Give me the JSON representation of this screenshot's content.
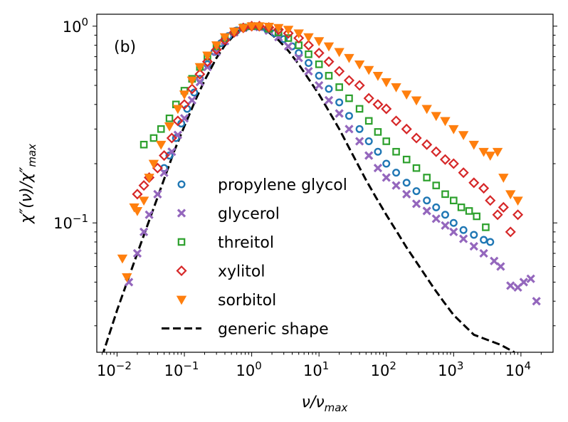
{
  "chart_data": {
    "type": "scatter",
    "panel_label": "(b)",
    "x_scale": "log",
    "y_scale": "log",
    "xlim": [
      0.005,
      30000
    ],
    "ylim": [
      0.022,
      1.15
    ],
    "xlabel": {
      "main": "ν/ν",
      "sub": "max"
    },
    "ylabel": {
      "main": "χ″(ν)/χ″",
      "sub": "max"
    },
    "x_ticks": [
      {
        "value": 0.01,
        "base": "10",
        "exp": "−2"
      },
      {
        "value": 0.1,
        "base": "10",
        "exp": "−1"
      },
      {
        "value": 1,
        "base": "10",
        "exp": "0"
      },
      {
        "value": 10,
        "base": "10",
        "exp": "1"
      },
      {
        "value": 100,
        "base": "10",
        "exp": "2"
      },
      {
        "value": 1000,
        "base": "10",
        "exp": "3"
      },
      {
        "value": 10000,
        "base": "10",
        "exp": "4"
      }
    ],
    "y_ticks": [
      {
        "value": 0.1,
        "base": "10",
        "exp": "−1"
      },
      {
        "value": 1,
        "base": "10",
        "exp": "0"
      }
    ],
    "legend_position": "center",
    "series": [
      {
        "name": "propylene glycol",
        "marker": "circle",
        "color": "#1f77b4",
        "points": [
          [
            0.05,
            0.19
          ],
          [
            0.06,
            0.22
          ],
          [
            0.075,
            0.27
          ],
          [
            0.09,
            0.32
          ],
          [
            0.11,
            0.38
          ],
          [
            0.14,
            0.46
          ],
          [
            0.17,
            0.54
          ],
          [
            0.22,
            0.64
          ],
          [
            0.28,
            0.74
          ],
          [
            0.35,
            0.82
          ],
          [
            0.45,
            0.89
          ],
          [
            0.6,
            0.95
          ],
          [
            0.8,
            0.985
          ],
          [
            1.0,
            1.0
          ],
          [
            1.3,
            0.99
          ],
          [
            1.7,
            0.96
          ],
          [
            2.2,
            0.92
          ],
          [
            3,
            0.86
          ],
          [
            4,
            0.79
          ],
          [
            5,
            0.73
          ],
          [
            7,
            0.65
          ],
          [
            10,
            0.56
          ],
          [
            14,
            0.48
          ],
          [
            20,
            0.41
          ],
          [
            28,
            0.35
          ],
          [
            40,
            0.3
          ],
          [
            55,
            0.26
          ],
          [
            75,
            0.23
          ],
          [
            100,
            0.2
          ],
          [
            140,
            0.18
          ],
          [
            200,
            0.16
          ],
          [
            280,
            0.145
          ],
          [
            400,
            0.13
          ],
          [
            550,
            0.12
          ],
          [
            750,
            0.11
          ],
          [
            1000,
            0.1
          ],
          [
            1400,
            0.092
          ],
          [
            2000,
            0.087
          ],
          [
            2800,
            0.082
          ],
          [
            3500,
            0.08
          ]
        ]
      },
      {
        "name": "glycerol",
        "marker": "x",
        "color": "#9467bd",
        "points": [
          [
            0.015,
            0.05
          ],
          [
            0.02,
            0.07
          ],
          [
            0.025,
            0.09
          ],
          [
            0.03,
            0.11
          ],
          [
            0.04,
            0.14
          ],
          [
            0.05,
            0.18
          ],
          [
            0.065,
            0.23
          ],
          [
            0.08,
            0.28
          ],
          [
            0.1,
            0.34
          ],
          [
            0.13,
            0.42
          ],
          [
            0.17,
            0.52
          ],
          [
            0.22,
            0.62
          ],
          [
            0.3,
            0.74
          ],
          [
            0.4,
            0.84
          ],
          [
            0.55,
            0.93
          ],
          [
            0.75,
            0.98
          ],
          [
            1.0,
            1.0
          ],
          [
            1.3,
            0.99
          ],
          [
            1.8,
            0.95
          ],
          [
            2.5,
            0.88
          ],
          [
            3.5,
            0.79
          ],
          [
            5,
            0.69
          ],
          [
            7,
            0.59
          ],
          [
            10,
            0.5
          ],
          [
            14,
            0.42
          ],
          [
            20,
            0.36
          ],
          [
            28,
            0.3
          ],
          [
            40,
            0.26
          ],
          [
            55,
            0.22
          ],
          [
            75,
            0.19
          ],
          [
            100,
            0.17
          ],
          [
            140,
            0.155
          ],
          [
            200,
            0.14
          ],
          [
            280,
            0.125
          ],
          [
            400,
            0.115
          ],
          [
            550,
            0.105
          ],
          [
            750,
            0.097
          ],
          [
            1000,
            0.09
          ],
          [
            1400,
            0.083
          ],
          [
            2000,
            0.076
          ],
          [
            2800,
            0.07
          ],
          [
            4000,
            0.064
          ],
          [
            5000,
            0.06
          ],
          [
            7000,
            0.048
          ],
          [
            9000,
            0.047
          ],
          [
            11000,
            0.05
          ],
          [
            14000,
            0.052
          ],
          [
            17000,
            0.04
          ]
        ]
      },
      {
        "name": "threitol",
        "marker": "square",
        "color": "#2ca02c",
        "points": [
          [
            0.025,
            0.25
          ],
          [
            0.035,
            0.27
          ],
          [
            0.045,
            0.3
          ],
          [
            0.06,
            0.34
          ],
          [
            0.075,
            0.4
          ],
          [
            0.1,
            0.47
          ],
          [
            0.13,
            0.54
          ],
          [
            0.17,
            0.62
          ],
          [
            0.22,
            0.7
          ],
          [
            0.3,
            0.79
          ],
          [
            0.4,
            0.87
          ],
          [
            0.55,
            0.94
          ],
          [
            0.75,
            0.985
          ],
          [
            1.0,
            1.0
          ],
          [
            1.3,
            1.0
          ],
          [
            1.8,
            0.97
          ],
          [
            2.5,
            0.93
          ],
          [
            3.5,
            0.87
          ],
          [
            5,
            0.8
          ],
          [
            7,
            0.72
          ],
          [
            10,
            0.64
          ],
          [
            14,
            0.56
          ],
          [
            20,
            0.49
          ],
          [
            28,
            0.43
          ],
          [
            40,
            0.38
          ],
          [
            55,
            0.33
          ],
          [
            75,
            0.29
          ],
          [
            100,
            0.26
          ],
          [
            140,
            0.23
          ],
          [
            200,
            0.21
          ],
          [
            280,
            0.19
          ],
          [
            400,
            0.17
          ],
          [
            550,
            0.155
          ],
          [
            750,
            0.14
          ],
          [
            1000,
            0.13
          ],
          [
            1300,
            0.12
          ],
          [
            1700,
            0.115
          ],
          [
            2200,
            0.108
          ],
          [
            3000,
            0.095
          ]
        ]
      },
      {
        "name": "xylitol",
        "marker": "diamond",
        "color": "#d62728",
        "points": [
          [
            0.02,
            0.14
          ],
          [
            0.025,
            0.155
          ],
          [
            0.03,
            0.17
          ],
          [
            0.04,
            0.19
          ],
          [
            0.05,
            0.22
          ],
          [
            0.065,
            0.27
          ],
          [
            0.08,
            0.33
          ],
          [
            0.1,
            0.4
          ],
          [
            0.13,
            0.48
          ],
          [
            0.17,
            0.57
          ],
          [
            0.22,
            0.66
          ],
          [
            0.3,
            0.76
          ],
          [
            0.4,
            0.85
          ],
          [
            0.55,
            0.93
          ],
          [
            0.75,
            0.98
          ],
          [
            1.0,
            1.0
          ],
          [
            1.3,
            1.0
          ],
          [
            1.8,
            0.985
          ],
          [
            2.5,
            0.96
          ],
          [
            3.5,
            0.92
          ],
          [
            5,
            0.87
          ],
          [
            7,
            0.8
          ],
          [
            10,
            0.73
          ],
          [
            14,
            0.66
          ],
          [
            20,
            0.59
          ],
          [
            28,
            0.53
          ],
          [
            40,
            0.5
          ],
          [
            55,
            0.43
          ],
          [
            75,
            0.4
          ],
          [
            100,
            0.38
          ],
          [
            140,
            0.33
          ],
          [
            200,
            0.3
          ],
          [
            280,
            0.27
          ],
          [
            400,
            0.25
          ],
          [
            550,
            0.23
          ],
          [
            750,
            0.21
          ],
          [
            1000,
            0.2
          ],
          [
            1400,
            0.18
          ],
          [
            2000,
            0.16
          ],
          [
            2800,
            0.15
          ],
          [
            3500,
            0.13
          ],
          [
            4500,
            0.11
          ],
          [
            5500,
            0.12
          ],
          [
            7000,
            0.09
          ],
          [
            9000,
            0.11
          ]
        ]
      },
      {
        "name": "sorbitol",
        "marker": "triangle-down",
        "color": "#ff7f0e",
        "points": [
          [
            0.012,
            0.066
          ],
          [
            0.014,
            0.053
          ],
          [
            0.018,
            0.12
          ],
          [
            0.02,
            0.115
          ],
          [
            0.025,
            0.13
          ],
          [
            0.03,
            0.17
          ],
          [
            0.035,
            0.2
          ],
          [
            0.045,
            0.25
          ],
          [
            0.06,
            0.31
          ],
          [
            0.08,
            0.38
          ],
          [
            0.1,
            0.45
          ],
          [
            0.13,
            0.53
          ],
          [
            0.17,
            0.62
          ],
          [
            0.22,
            0.71
          ],
          [
            0.3,
            0.8
          ],
          [
            0.4,
            0.88
          ],
          [
            0.55,
            0.94
          ],
          [
            0.75,
            0.98
          ],
          [
            1.0,
            1.0
          ],
          [
            1.3,
            1.0
          ],
          [
            1.8,
            0.995
          ],
          [
            2.5,
            0.98
          ],
          [
            3.5,
            0.96
          ],
          [
            5,
            0.92
          ],
          [
            7,
            0.88
          ],
          [
            10,
            0.84
          ],
          [
            14,
            0.79
          ],
          [
            20,
            0.74
          ],
          [
            28,
            0.69
          ],
          [
            40,
            0.64
          ],
          [
            55,
            0.6
          ],
          [
            75,
            0.56
          ],
          [
            100,
            0.52
          ],
          [
            140,
            0.49
          ],
          [
            200,
            0.45
          ],
          [
            280,
            0.42
          ],
          [
            400,
            0.38
          ],
          [
            550,
            0.35
          ],
          [
            750,
            0.33
          ],
          [
            1000,
            0.3
          ],
          [
            1400,
            0.28
          ],
          [
            2000,
            0.25
          ],
          [
            2800,
            0.23
          ],
          [
            3500,
            0.22
          ],
          [
            4500,
            0.23
          ],
          [
            5500,
            0.17
          ],
          [
            7000,
            0.14
          ],
          [
            9000,
            0.13
          ]
        ]
      }
    ],
    "curve": {
      "name": "generic shape",
      "style": "dashed",
      "color": "#000000",
      "points": [
        [
          0.006,
          0.021
        ],
        [
          0.01,
          0.036
        ],
        [
          0.02,
          0.07
        ],
        [
          0.04,
          0.135
        ],
        [
          0.07,
          0.23
        ],
        [
          0.1,
          0.31
        ],
        [
          0.15,
          0.43
        ],
        [
          0.2,
          0.53
        ],
        [
          0.3,
          0.69
        ],
        [
          0.4,
          0.8
        ],
        [
          0.6,
          0.93
        ],
        [
          0.8,
          0.985
        ],
        [
          1.0,
          1.0
        ],
        [
          1.3,
          0.985
        ],
        [
          1.8,
          0.93
        ],
        [
          2.5,
          0.85
        ],
        [
          3.5,
          0.75
        ],
        [
          5,
          0.64
        ],
        [
          7,
          0.54
        ],
        [
          10,
          0.45
        ],
        [
          14,
          0.37
        ],
        [
          20,
          0.3
        ],
        [
          30,
          0.23
        ],
        [
          50,
          0.165
        ],
        [
          70,
          0.135
        ],
        [
          100,
          0.11
        ],
        [
          150,
          0.088
        ],
        [
          200,
          0.075
        ],
        [
          300,
          0.061
        ],
        [
          500,
          0.047
        ],
        [
          700,
          0.04
        ],
        [
          1000,
          0.034
        ],
        [
          2000,
          0.027
        ],
        [
          5000,
          0.024
        ],
        [
          8000,
          0.022
        ]
      ]
    }
  }
}
